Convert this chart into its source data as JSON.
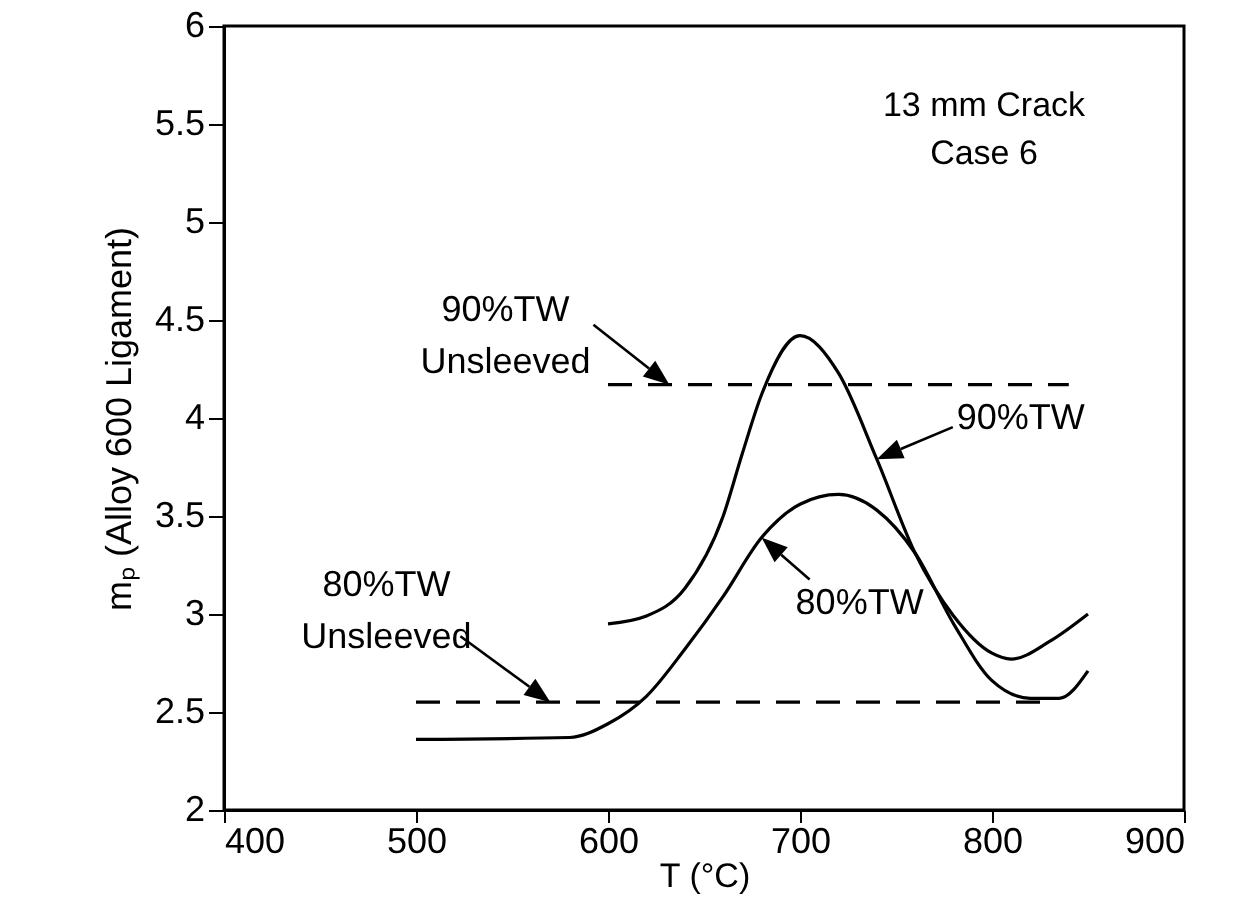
{
  "chart_data": {
    "type": "line",
    "xlabel": "T (°C)",
    "ylabel": "mₚ (Alloy 600 Ligament)",
    "xlim": [
      400,
      900
    ],
    "xticks": [
      400,
      500,
      600,
      700,
      800,
      900
    ],
    "ylim": [
      2,
      6
    ],
    "yticks": [
      2,
      2.5,
      3,
      3.5,
      4,
      4.5,
      5,
      5.5,
      6
    ],
    "grid": false,
    "line_style": "solid",
    "marker": "none",
    "series": [
      {
        "color": "#000000",
        "x": [
          600,
          620,
          640,
          660,
          670,
          680,
          700,
          720,
          740,
          760,
          780,
          800,
          810,
          830,
          850
        ],
        "values": [
          2.95,
          2.99,
          3.13,
          3.5,
          3.82,
          4.12,
          4.42,
          4.23,
          3.79,
          3.31,
          2.99,
          2.8,
          2.77,
          2.86,
          3.0
        ]
      },
      {
        "color": "#000000",
        "x": [
          500,
          580,
          600,
          620,
          640,
          660,
          680,
          700,
          720,
          740,
          760,
          780,
          800,
          820,
          835,
          850
        ],
        "values": [
          2.36,
          2.37,
          2.44,
          2.58,
          2.82,
          3.09,
          3.39,
          3.56,
          3.61,
          3.53,
          3.31,
          2.95,
          2.66,
          2.57,
          2.57,
          2.71
        ]
      },
      {
        "color": "#000000",
        "line_style": "dashed",
        "x": [
          600,
          840
        ],
        "values": [
          4.17,
          4.17
        ]
      },
      {
        "color": "#000000",
        "line_style": "dashed",
        "x": [
          500,
          830
        ],
        "values": [
          2.55,
          2.55
        ]
      }
    ],
    "annotations": [
      "13 mm Crack\nCase 6",
      {
        "text": "90%TW\nUnsleeved",
        "x": 632,
        "y": 4.17
      },
      {
        "text": "90%TW",
        "x": 740,
        "y": 3.79
      },
      {
        "text": "80%TW",
        "x": 680,
        "y": 3.39
      },
      {
        "text": "80%TW\nUnsleeved",
        "x": 570,
        "y": 2.55
      }
    ]
  }
}
